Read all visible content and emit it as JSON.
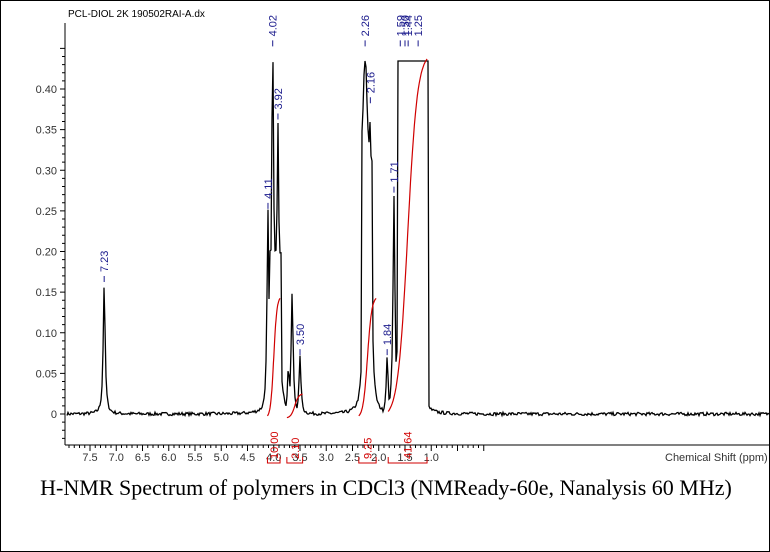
{
  "chart_data": {
    "type": "line",
    "file_label": "PCL-DIOL 2K 190502RAI-A.dx",
    "xlabel": "Chemical Shift (ppm)",
    "xlim": [
      8.0,
      0.0
    ],
    "ylim": [
      -0.04,
      0.48
    ],
    "x_ticks": [
      "7.5",
      "7.0",
      "6.5",
      "6.0",
      "5.5",
      "5.0",
      "4.5",
      "4.0",
      "3.5",
      "3.0",
      "2.5",
      "2.0",
      "1.5",
      "1.0"
    ],
    "x_tick_values": [
      7.5,
      7.0,
      6.5,
      6.0,
      5.5,
      5.0,
      4.5,
      4.0,
      3.5,
      3.0,
      2.5,
      2.0,
      1.5,
      1.0
    ],
    "y_ticks": [
      "0",
      "0.05",
      "0.10",
      "0.15",
      "0.20",
      "0.25",
      "0.30",
      "0.35",
      "0.40"
    ],
    "y_tick_values": [
      0,
      0.05,
      0.1,
      0.15,
      0.2,
      0.25,
      0.3,
      0.35,
      0.4
    ],
    "peaks": [
      {
        "label": "7.23",
        "ppm": 7.23,
        "intensity": 0.16
      },
      {
        "label": "4.11",
        "ppm": 4.11,
        "intensity": 0.25
      },
      {
        "label": "4.02",
        "ppm": 4.02,
        "intensity": 0.45
      },
      {
        "label": "3.92",
        "ppm": 3.92,
        "intensity": 0.36
      },
      {
        "label": "3.50",
        "ppm": 3.5,
        "intensity": 0.07
      },
      {
        "label": "2.26",
        "ppm": 2.26,
        "intensity": 0.45
      },
      {
        "label": "2.16",
        "ppm": 2.16,
        "intensity": 0.38
      },
      {
        "label": "1.84",
        "ppm": 1.84,
        "intensity": 0.07
      },
      {
        "label": "1.71",
        "ppm": 1.71,
        "intensity": 0.27
      },
      {
        "label": "1.59",
        "ppm": 1.59,
        "intensity": 0.45
      },
      {
        "label": "1.50",
        "ppm": 1.5,
        "intensity": 0.45
      },
      {
        "label": "1.44",
        "ppm": 1.44,
        "intensity": 0.45
      },
      {
        "label": "1.25",
        "ppm": 1.25,
        "intensity": 0.45
      }
    ],
    "unlabeled_peaks": [
      {
        "ppm": 3.65,
        "intensity": 0.15
      },
      {
        "ppm": 3.72,
        "intensity": 0.06
      }
    ],
    "integrals": [
      {
        "label": "10.00",
        "from": 4.12,
        "to": 3.88,
        "max": 0.15
      },
      {
        "label": "2.10",
        "from": 3.75,
        "to": 3.45,
        "max": 0.03
      },
      {
        "label": "9.25",
        "from": 2.38,
        "to": 2.05,
        "max": 0.15
      },
      {
        "label": "41.64",
        "from": 1.82,
        "to": 1.08,
        "max": 0.45
      }
    ],
    "colors": {
      "spectrum": "#000000",
      "integral": "#d00000",
      "peak_label": "#1a1a8c"
    }
  },
  "caption": "H-NMR Spectrum of polymers in CDCl3 (NMReady-60e, Nanalysis 60 MHz)"
}
